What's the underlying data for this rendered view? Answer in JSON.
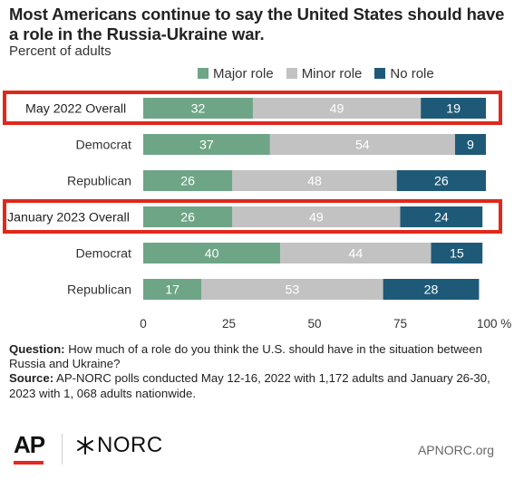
{
  "title": "Most Americans continue to say the United States should have a role in the Russia-Ukraine war.",
  "subtitle": "Percent of adults",
  "colors": {
    "major": "#6ea586",
    "minor": "#c2c2c2",
    "none": "#1e5a78",
    "highlight": "#e0281b"
  },
  "chart_data": {
    "type": "bar",
    "orientation": "horizontal-stacked",
    "categories": [
      "May  2022 Overall",
      "Democrat",
      "Republican",
      "January 2023 Overall",
      "Democrat",
      "Republican"
    ],
    "highlighted": [
      "May  2022 Overall",
      "January 2023 Overall"
    ],
    "series": [
      {
        "name": "Major role",
        "values": [
          32,
          37,
          26,
          26,
          40,
          17
        ]
      },
      {
        "name": "Minor role",
        "values": [
          49,
          54,
          48,
          49,
          44,
          53
        ]
      },
      {
        "name": "No role",
        "values": [
          19,
          9,
          26,
          24,
          15,
          28
        ]
      }
    ],
    "xlim": [
      0,
      100
    ],
    "xticks": [
      "0",
      "25",
      "50",
      "75",
      "100 %"
    ],
    "legend_position": "top",
    "grid": false
  },
  "footnote": {
    "question_label": "Question:",
    "question_text": "How much of a role do you think the U.S. should have in the situation between Russia and Ukraine?",
    "source_label": "Source:",
    "source_text": "AP-NORC polls conducted May 12-16, 2022 with 1,172 adults and January 26-30, 2023 with 1, 068 adults nationwide."
  },
  "branding": {
    "ap_logo": "AP",
    "norc_logo": "NORC",
    "site": "APNORC.org"
  }
}
